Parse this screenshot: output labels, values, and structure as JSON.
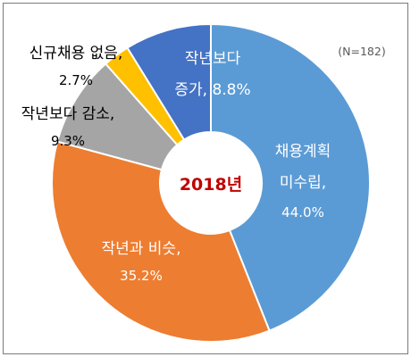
{
  "chart_data": {
    "type": "pie",
    "style": "donut",
    "center_label": "2018년",
    "note": "(N=182)",
    "unit": "%",
    "slices": [
      {
        "label": "채용계획 미수립",
        "value": 44.0,
        "value_text": "44.0%",
        "color": "#5B9BD5"
      },
      {
        "label": "작년과 비슷",
        "value": 35.2,
        "value_text": "35.2%",
        "color": "#ED7D31"
      },
      {
        "label": "작년보다 감소",
        "value": 9.3,
        "value_text": "9.3%",
        "color": "#A5A5A5"
      },
      {
        "label": "신규채용 없음",
        "value": 2.7,
        "value_text": "2.7%",
        "color": "#FFC000"
      },
      {
        "label": "작년보다 증가",
        "value": 8.8,
        "value_text": "8.8%",
        "color": "#4472C4"
      }
    ],
    "start_angle_deg": 0,
    "direction": "clockwise",
    "legend": "none"
  },
  "colors": {
    "center_text": "#C00000",
    "note_text": "#595959",
    "label_inside": "#ffffff",
    "label_outside": "#000000",
    "separator": "#ffffff"
  }
}
